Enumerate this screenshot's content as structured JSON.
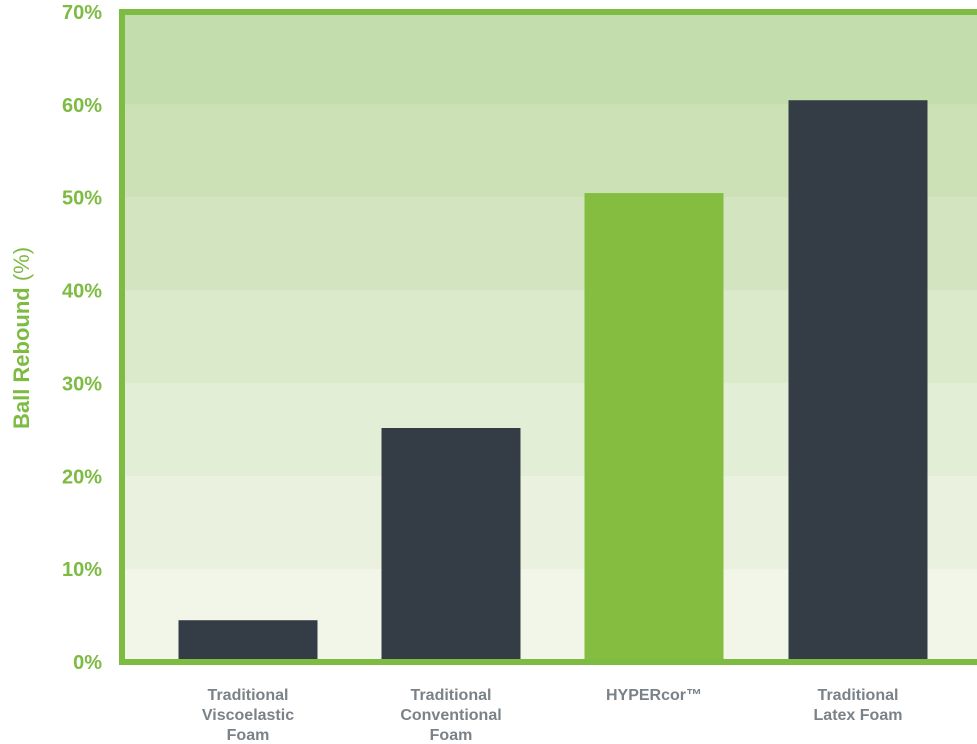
{
  "chart_data": {
    "type": "bar",
    "ylabel_bold": "Ball Rebound",
    "ylabel_unit": " (%)",
    "yticks": [
      "0%",
      "10%",
      "20%",
      "30%",
      "40%",
      "50%",
      "60%",
      "70%"
    ],
    "ylim": [
      0,
      70
    ],
    "categories": [
      [
        "Traditional",
        "Viscoelastic",
        "Foam"
      ],
      [
        "Traditional",
        "Conventional",
        "Foam"
      ],
      [
        "HYPERcor™"
      ],
      [
        "Traditional",
        "Latex Foam"
      ]
    ],
    "values": [
      4.5,
      25.2,
      50.5,
      60.5
    ],
    "bar_colors": [
      "#343d46",
      "#343d46",
      "#84bd3f",
      "#343d46"
    ],
    "grid": true
  },
  "colors": {
    "accent": "#7dbb43",
    "frame": "#7dbb43",
    "dark_bar": "#343d46",
    "highlight_bar": "#84bd3f",
    "category_label": "#7a8288"
  }
}
